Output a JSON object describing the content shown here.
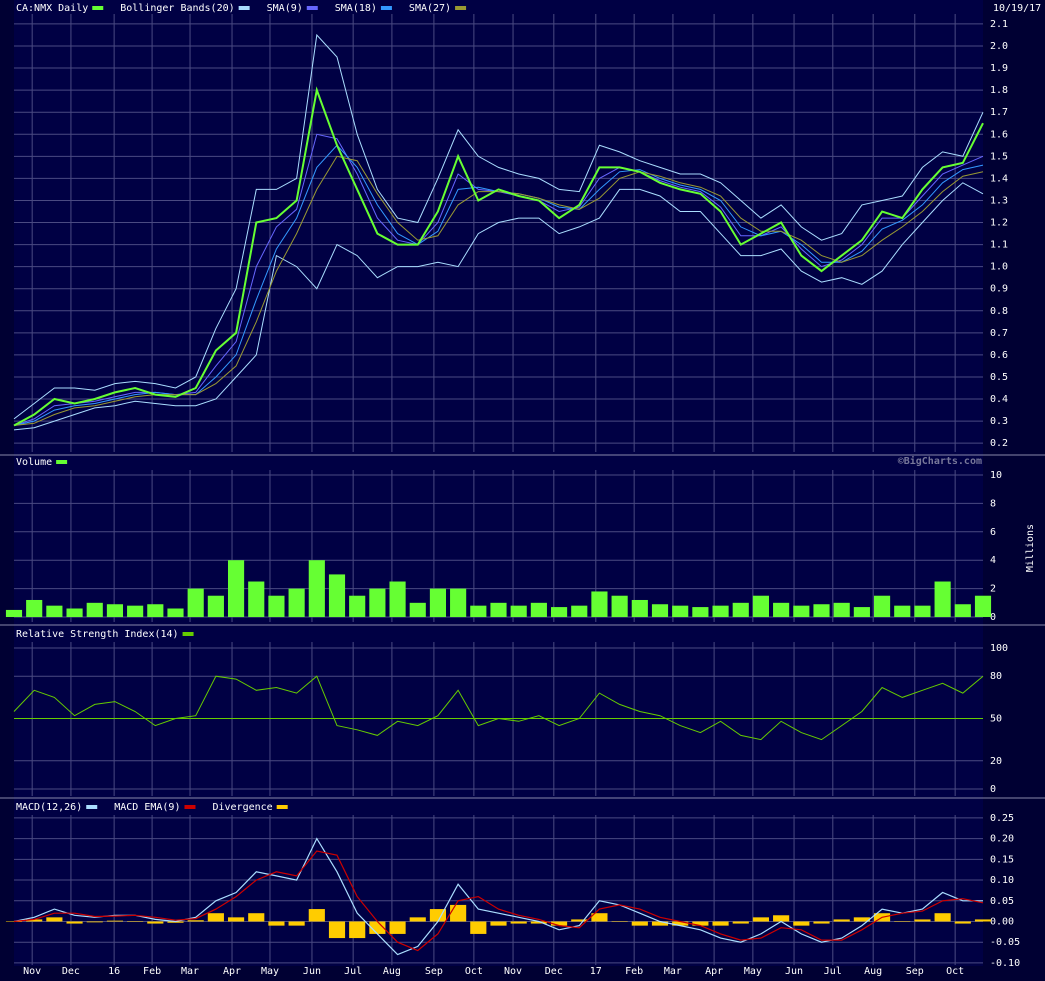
{
  "chart_data": [
    {
      "type": "stock",
      "title": "CA:NMX Daily",
      "date": "10/19/17",
      "x": [
        0,
        0.5,
        1,
        1.5,
        2,
        2.5,
        3,
        3.5,
        4,
        4.5,
        5,
        5.5,
        6,
        6.5,
        7,
        7.5,
        8,
        8.5,
        9,
        9.5,
        10,
        10.5,
        11,
        11.5,
        12,
        12.5,
        13,
        13.5,
        14,
        14.5,
        15,
        15.5,
        16,
        16.5,
        17,
        17.5,
        18,
        18.5,
        19,
        19.5,
        20,
        20.5,
        21,
        21.5,
        22,
        22.5,
        23,
        23.5,
        24
      ],
      "xlim": [
        0,
        24
      ],
      "ylim": [
        0.16,
        2.145
      ],
      "yticks": [
        0.2,
        0.3,
        0.4,
        0.5,
        0.6,
        0.7,
        0.8,
        0.9,
        {
          "value": 1,
          "label": "1.0"
        },
        1.1,
        1.2,
        1.3,
        1.4,
        1.5,
        1.6,
        1.7,
        1.8,
        1.9,
        {
          "value": 2,
          "label": "2.0"
        },
        2.1
      ],
      "grid": true,
      "series": [
        {
          "name": "CA:NMX Daily",
          "color": "#66ff33",
          "values": [
            0.28,
            0.33,
            0.4,
            0.38,
            0.4,
            0.43,
            0.45,
            0.42,
            0.41,
            0.45,
            0.62,
            0.7,
            1.2,
            1.22,
            1.3,
            1.8,
            1.55,
            1.35,
            1.15,
            1.1,
            1.1,
            1.25,
            1.5,
            1.3,
            1.35,
            1.32,
            1.3,
            1.22,
            1.28,
            1.45,
            1.45,
            1.43,
            1.38,
            1.35,
            1.33,
            1.25,
            1.1,
            1.15,
            1.2,
            1.05,
            0.98,
            1.05,
            1.12,
            1.25,
            1.22,
            1.35,
            1.45,
            1.47,
            1.65
          ]
        },
        {
          "name": "Bollinger Bands(20)",
          "color": "#aaddff",
          "upper": [
            0.31,
            0.38,
            0.45,
            0.45,
            0.44,
            0.47,
            0.48,
            0.47,
            0.45,
            0.5,
            0.72,
            0.9,
            1.35,
            1.35,
            1.4,
            2.05,
            1.95,
            1.6,
            1.35,
            1.22,
            1.2,
            1.4,
            1.62,
            1.5,
            1.45,
            1.42,
            1.4,
            1.35,
            1.34,
            1.55,
            1.52,
            1.48,
            1.45,
            1.42,
            1.42,
            1.38,
            1.3,
            1.22,
            1.28,
            1.18,
            1.12,
            1.15,
            1.28,
            1.3,
            1.32,
            1.45,
            1.52,
            1.5,
            1.7
          ],
          "lower": [
            0.26,
            0.27,
            0.3,
            0.33,
            0.36,
            0.37,
            0.39,
            0.38,
            0.37,
            0.37,
            0.4,
            0.5,
            0.6,
            1.05,
            1.0,
            0.9,
            1.1,
            1.05,
            0.95,
            1.0,
            1.0,
            1.02,
            1.0,
            1.15,
            1.2,
            1.22,
            1.22,
            1.15,
            1.18,
            1.22,
            1.35,
            1.35,
            1.32,
            1.25,
            1.25,
            1.15,
            1.05,
            1.05,
            1.08,
            0.98,
            0.93,
            0.95,
            0.92,
            0.98,
            1.1,
            1.2,
            1.3,
            1.38,
            1.33
          ]
        },
        {
          "name": "SMA(9)",
          "color": "#6666ff",
          "values": [
            0.28,
            0.31,
            0.37,
            0.38,
            0.39,
            0.41,
            0.43,
            0.43,
            0.42,
            0.43,
            0.55,
            0.66,
            1.0,
            1.18,
            1.26,
            1.6,
            1.58,
            1.42,
            1.22,
            1.12,
            1.1,
            1.2,
            1.42,
            1.35,
            1.34,
            1.32,
            1.3,
            1.25,
            1.27,
            1.4,
            1.45,
            1.43,
            1.39,
            1.36,
            1.34,
            1.27,
            1.14,
            1.14,
            1.18,
            1.08,
            1.0,
            1.03,
            1.1,
            1.22,
            1.22,
            1.32,
            1.42,
            1.46,
            1.5
          ]
        },
        {
          "name": "SMA(18)",
          "color": "#3399ff",
          "values": [
            0.28,
            0.3,
            0.35,
            0.37,
            0.38,
            0.4,
            0.42,
            0.43,
            0.42,
            0.42,
            0.5,
            0.6,
            0.85,
            1.08,
            1.22,
            1.45,
            1.55,
            1.45,
            1.28,
            1.15,
            1.1,
            1.16,
            1.35,
            1.36,
            1.34,
            1.33,
            1.31,
            1.27,
            1.26,
            1.35,
            1.43,
            1.44,
            1.4,
            1.37,
            1.35,
            1.3,
            1.18,
            1.14,
            1.16,
            1.1,
            1.02,
            1.02,
            1.07,
            1.17,
            1.21,
            1.28,
            1.38,
            1.44,
            1.46
          ]
        },
        {
          "name": "SMA(27)",
          "color": "#999933",
          "values": [
            0.28,
            0.29,
            0.33,
            0.36,
            0.37,
            0.39,
            0.41,
            0.42,
            0.42,
            0.42,
            0.47,
            0.55,
            0.75,
            0.98,
            1.15,
            1.35,
            1.5,
            1.48,
            1.33,
            1.2,
            1.12,
            1.14,
            1.28,
            1.34,
            1.34,
            1.33,
            1.31,
            1.28,
            1.26,
            1.31,
            1.4,
            1.43,
            1.41,
            1.38,
            1.36,
            1.32,
            1.22,
            1.16,
            1.16,
            1.12,
            1.05,
            1.02,
            1.05,
            1.12,
            1.18,
            1.25,
            1.34,
            1.41,
            1.43
          ]
        }
      ]
    },
    {
      "type": "bar",
      "title": "Volume",
      "color": "#66ff33",
      "y_label": "Millions",
      "source": "©BigCharts.com",
      "values": [
        0.5,
        1.2,
        0.8,
        0.6,
        1.0,
        0.9,
        0.8,
        0.9,
        0.6,
        2.0,
        1.5,
        4.0,
        2.5,
        1.5,
        2.0,
        4.0,
        3.0,
        1.5,
        2.0,
        2.5,
        1.0,
        2.0,
        2.0,
        0.8,
        1.0,
        0.8,
        1.0,
        0.7,
        0.8,
        1.8,
        1.5,
        1.2,
        0.9,
        0.8,
        0.7,
        0.8,
        1.0,
        1.5,
        1.0,
        0.8,
        0.9,
        1.0,
        0.7,
        1.5,
        0.8,
        0.8,
        2.5,
        0.9,
        1.5
      ],
      "ylim": [
        -0.35,
        10.35
      ],
      "yticks": [
        0,
        2,
        4,
        6,
        8,
        10
      ],
      "grid": true
    },
    {
      "type": "line",
      "title": "Relative Strength Index(14)",
      "color": "#66cc00",
      "midline": 50,
      "values": [
        55,
        70,
        65,
        52,
        60,
        62,
        55,
        45,
        50,
        52,
        80,
        78,
        70,
        72,
        68,
        80,
        45,
        42,
        38,
        48,
        45,
        52,
        70,
        45,
        50,
        48,
        52,
        45,
        50,
        68,
        60,
        55,
        52,
        45,
        40,
        48,
        38,
        35,
        48,
        40,
        35,
        45,
        55,
        72,
        65,
        70,
        75,
        68,
        80
      ],
      "ylim": [
        -5,
        104.3
      ],
      "yticks": [
        0,
        20,
        50,
        80,
        100
      ],
      "grid": true
    },
    {
      "type": "macd",
      "grid": true,
      "ylim": [
        -0.105,
        0.257
      ],
      "yticks": [
        {
          "value": -0.1,
          "label": "-0.10"
        },
        -0.05,
        {
          "value": 0,
          "label": "0.00"
        },
        0.05,
        {
          "value": 0.1,
          "label": "0.10"
        },
        0.15,
        {
          "value": 0.2,
          "label": "0.20"
        },
        0.25
      ],
      "xticks": [
        {
          "value": 0.45,
          "label": "Nov"
        },
        {
          "value": 1.41,
          "label": "Dec"
        },
        {
          "value": 2.48,
          "label": "16"
        },
        {
          "value": 3.42,
          "label": "Feb"
        },
        {
          "value": 4.36,
          "label": "Mar"
        },
        {
          "value": 5.4,
          "label": "Apr"
        },
        {
          "value": 6.34,
          "label": "May"
        },
        {
          "value": 7.38,
          "label": "Jun"
        },
        {
          "value": 8.4,
          "label": "Jul"
        },
        {
          "value": 9.36,
          "label": "Aug"
        },
        {
          "value": 10.4,
          "label": "Sep"
        },
        {
          "value": 11.39,
          "label": "Oct"
        },
        {
          "value": 12.36,
          "label": "Nov"
        },
        {
          "value": 13.37,
          "label": "Dec"
        },
        {
          "value": 14.41,
          "label": "17"
        },
        {
          "value": 15.36,
          "label": "Feb"
        },
        {
          "value": 16.32,
          "label": "Mar"
        },
        {
          "value": 17.34,
          "label": "Apr"
        },
        {
          "value": 18.3,
          "label": "May"
        },
        {
          "value": 19.32,
          "label": "Jun"
        },
        {
          "value": 20.28,
          "label": "Jul"
        },
        {
          "value": 21.28,
          "label": "Aug"
        },
        {
          "value": 22.31,
          "label": "Sep"
        },
        {
          "value": 23.31,
          "label": "Oct"
        }
      ],
      "series": [
        {
          "name": "MACD(12,26)",
          "color": "#aaddff",
          "values": [
            0,
            0.01,
            0.03,
            0.015,
            0.01,
            0.015,
            0.015,
            0.005,
            0,
            0.01,
            0.05,
            0.07,
            0.12,
            0.11,
            0.1,
            0.2,
            0.12,
            0.02,
            -0.03,
            -0.08,
            -0.06,
            0.0,
            0.09,
            0.03,
            0.02,
            0.01,
            0,
            -0.02,
            -0.01,
            0.05,
            0.04,
            0.02,
            0.0,
            -0.01,
            -0.02,
            -0.04,
            -0.05,
            -0.03,
            0.0,
            -0.03,
            -0.05,
            -0.04,
            -0.01,
            0.03,
            0.02,
            0.03,
            0.07,
            0.05,
            0.05
          ]
        },
        {
          "name": "MACD EMA(9)",
          "color": "#cc0000",
          "values": [
            0,
            0.005,
            0.02,
            0.02,
            0.012,
            0.013,
            0.015,
            0.01,
            0.003,
            0.007,
            0.03,
            0.06,
            0.1,
            0.12,
            0.11,
            0.17,
            0.16,
            0.06,
            0.0,
            -0.05,
            -0.07,
            -0.03,
            0.05,
            0.06,
            0.03,
            0.015,
            0.005,
            -0.01,
            -0.015,
            0.03,
            0.04,
            0.03,
            0.01,
            0,
            -0.01,
            -0.03,
            -0.045,
            -0.04,
            -0.015,
            -0.02,
            -0.045,
            -0.045,
            -0.02,
            0.01,
            0.02,
            0.025,
            0.05,
            0.055,
            0.045
          ]
        },
        {
          "name": "Divergence",
          "color": "#ffcc00",
          "type": "bar",
          "values": [
            0,
            0.005,
            0.01,
            -0.005,
            -0.002,
            0.002,
            0,
            -0.005,
            -0.003,
            0.003,
            0.02,
            0.01,
            0.02,
            -0.01,
            -0.01,
            0.03,
            -0.04,
            -0.04,
            -0.03,
            -0.03,
            0.01,
            0.03,
            0.04,
            -0.03,
            -0.01,
            -0.005,
            -0.005,
            -0.01,
            0.005,
            0.02,
            0,
            -0.01,
            -0.01,
            -0.01,
            -0.01,
            -0.01,
            -0.005,
            0.01,
            0.015,
            -0.01,
            -0.005,
            0.005,
            0.01,
            0.02,
            0,
            0.005,
            0.02,
            -0.005,
            0.005
          ]
        }
      ]
    }
  ]
}
